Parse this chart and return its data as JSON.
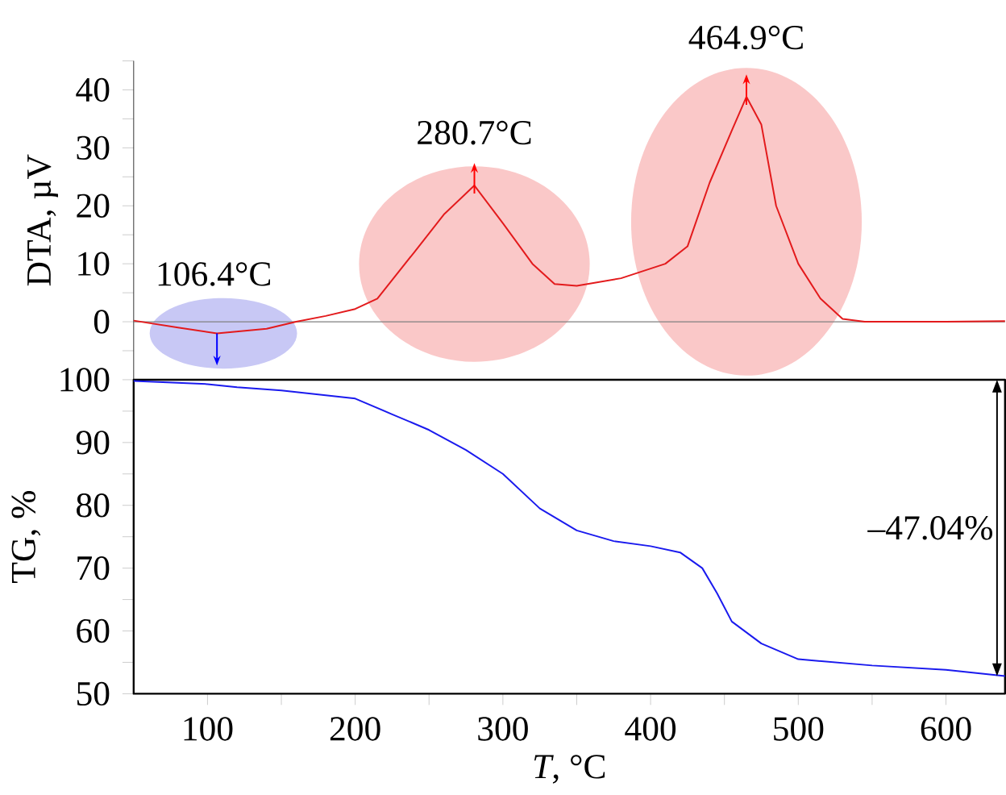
{
  "chart_data": [
    {
      "type": "line",
      "ylabel": "DTA, µV",
      "xlim": [
        50,
        640
      ],
      "ylim": [
        -10,
        45
      ],
      "tick_labels": "y",
      "yticks": [
        {
          "value": -5,
          "label": null
        },
        0,
        {
          "value": 5,
          "label": null
        },
        10,
        {
          "value": 15,
          "label": null
        },
        20,
        {
          "value": 25,
          "label": null
        },
        30,
        {
          "value": 35,
          "label": null
        },
        40,
        {
          "value": 45,
          "label": null
        }
      ],
      "series": [
        {
          "color": "#e31a1c",
          "x": [
            50,
            80,
            106.4,
            140,
            160,
            180,
            200,
            215,
            240,
            260,
            280.7,
            300,
            320,
            335,
            350,
            380,
            410,
            425,
            440,
            455,
            464.9,
            475,
            485,
            500,
            515,
            530,
            545,
            600,
            640
          ],
          "values": [
            0.2,
            -1,
            -2,
            -1.2,
            0,
            1,
            2.2,
            4,
            12,
            18.5,
            23.5,
            17,
            10,
            6.5,
            6.2,
            7.5,
            10,
            13,
            24,
            33,
            38.8,
            34,
            20,
            10,
            4,
            0.5,
            0,
            0,
            0.1
          ]
        }
      ],
      "ref_lines": [
        {
          "axis": "y",
          "value": 0,
          "color": "#808080"
        }
      ],
      "annotations": [
        {
          "text": "106.4°C",
          "x": 106.4,
          "y": -2
        },
        {
          "text": "280.7°C",
          "x": 280.7,
          "y": 23.5
        },
        {
          "text": "464.9°C",
          "x": 464.9,
          "y": 38.8
        }
      ]
    },
    {
      "type": "line",
      "xlabel": "*T*, °C",
      "ylabel": "TG, %",
      "xlim": [
        50,
        640
      ],
      "ylim": [
        50,
        100
      ],
      "xticks": [
        100,
        {
          "value": 150,
          "label": null
        },
        200,
        {
          "value": 250,
          "label": null
        },
        300,
        {
          "value": 350,
          "label": null
        },
        400,
        {
          "value": 450,
          "label": null
        },
        500,
        {
          "value": 550,
          "label": null
        },
        600
      ],
      "yticks": [
        50,
        {
          "value": 55,
          "label": null
        },
        60,
        {
          "value": 65,
          "label": null
        },
        70,
        {
          "value": 75,
          "label": null
        },
        80,
        {
          "value": 85,
          "label": null
        },
        90,
        {
          "value": 95,
          "label": null
        },
        100
      ],
      "series": [
        {
          "color": "#1a1aee",
          "x": [
            50,
            100,
            120,
            150,
            200,
            225,
            250,
            275,
            300,
            325,
            350,
            375,
            400,
            420,
            435,
            445,
            455,
            475,
            500,
            550,
            600,
            640
          ],
          "values": [
            99.8,
            99.3,
            98.8,
            98.3,
            97,
            94.5,
            92,
            88.8,
            85,
            79.5,
            76,
            74.3,
            73.5,
            72.5,
            70,
            66,
            61.5,
            58,
            55.5,
            54.5,
            53.8,
            52.8
          ]
        }
      ],
      "annotations": [
        "–47.04%"
      ]
    }
  ]
}
